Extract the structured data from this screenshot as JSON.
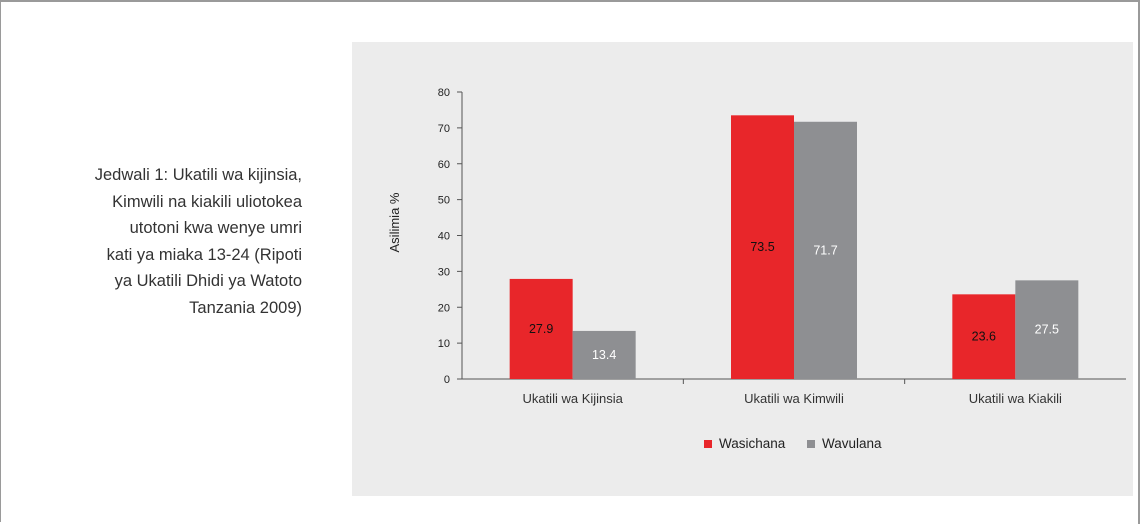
{
  "caption": "Jedwali 1: Ukatili wa kijinsia,\nKimwili na kiakili uliotokea\nutotoni kwa wenye umri\nkati ya miaka 13-24 (Ripoti\nya Ukatili Dhidi ya Watoto\nTanzania 2009)",
  "chart_data": {
    "type": "bar",
    "categories": [
      "Ukatili wa Kijinsia",
      "Ukatili wa Kimwili",
      "Ukatili wa Kiakili"
    ],
    "series": [
      {
        "name": "Wasichana",
        "color": "#e8262a",
        "values": [
          27.9,
          73.5,
          23.6
        ],
        "labels": [
          "27.9",
          "73.5",
          "23.6"
        ]
      },
      {
        "name": "Wavulana",
        "color": "#8e8f92",
        "values": [
          13.4,
          71.7,
          27.5
        ],
        "labels": [
          "13.4",
          "71.7",
          "27.5"
        ]
      }
    ],
    "ylabel": "Asilimia %",
    "ylim": [
      0,
      80
    ],
    "yticks": [
      "0",
      "10",
      "20",
      "30",
      "40",
      "50",
      "60",
      "70",
      "80"
    ],
    "legend": "bottom-center",
    "grid": false
  }
}
